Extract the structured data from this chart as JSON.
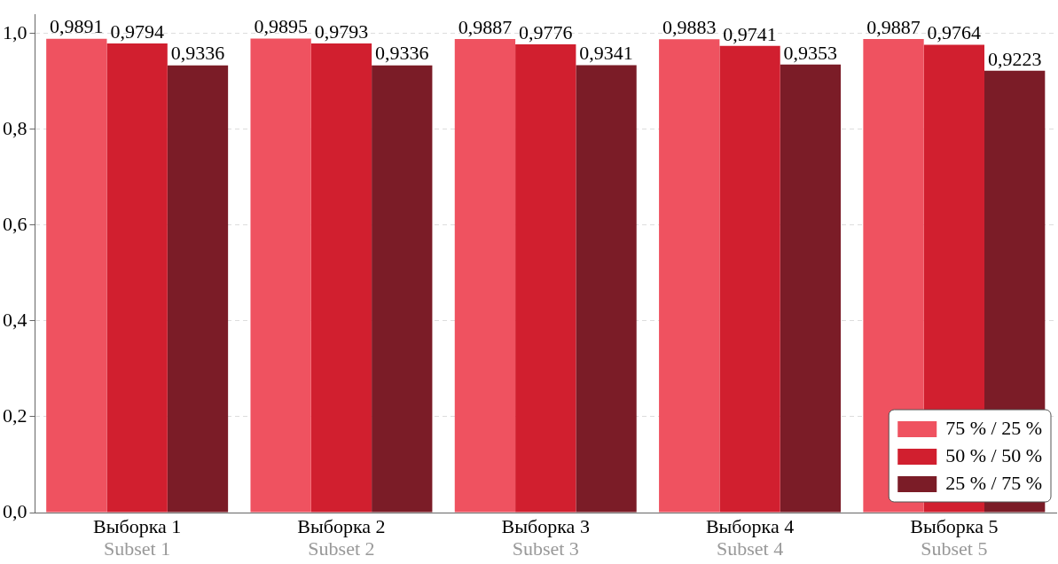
{
  "chart_data": {
    "type": "bar",
    "categories": [
      "Выборка 1\nSubset 1",
      "Выборка 2\nSubset 2",
      "Выборка 3\nSubset 3",
      "Выборка 4\nSubset 4",
      "Выборка 5\nSubset 5"
    ],
    "series": [
      {
        "name": "75 % / 25 %",
        "color": "#ef5260",
        "values": [
          0.9891,
          0.9895,
          0.9887,
          0.9883,
          0.9887
        ],
        "value_labels": [
          "0,9891",
          "0,9895",
          "0,9887",
          "0,9883",
          "0,9887"
        ]
      },
      {
        "name": "50 % / 50 %",
        "color": "#d11f2f",
        "values": [
          0.9794,
          0.9793,
          0.9776,
          0.9741,
          0.9764
        ],
        "value_labels": [
          "0,9794",
          "0,9793",
          "0,9776",
          "0,9741",
          "0,9764"
        ]
      },
      {
        "name": "25 % / 75 %",
        "color": "#7b1c27",
        "values": [
          0.9336,
          0.9336,
          0.9341,
          0.9353,
          0.9223
        ],
        "value_labels": [
          "0,9336",
          "0,9336",
          "0,9341",
          "0,9353",
          "0,9223"
        ]
      }
    ],
    "ylim": [
      0,
      1.04
    ],
    "yticks": [
      {
        "value": 0,
        "label": "0,0"
      },
      {
        "value": 0.2,
        "label": "0,2"
      },
      {
        "value": 0.4,
        "label": "0,4"
      },
      {
        "value": 0.6,
        "label": "0,6"
      },
      {
        "value": 0.8,
        "label": "0,8"
      },
      {
        "value": 1,
        "label": "1,0"
      }
    ],
    "grid": "y",
    "legend": "bottom right"
  }
}
